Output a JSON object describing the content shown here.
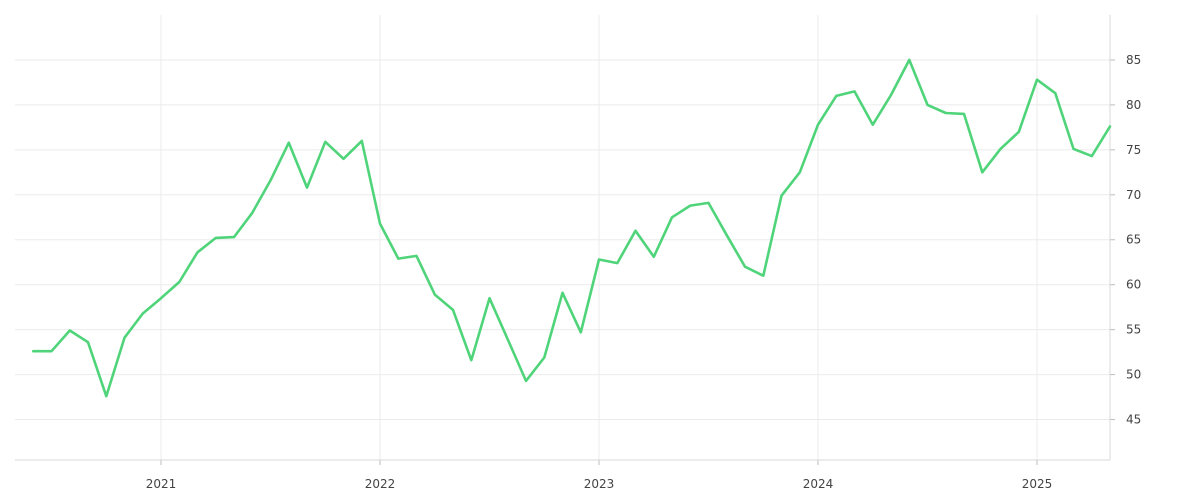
{
  "chart_data": {
    "type": "line",
    "title": "",
    "xlabel": "",
    "ylabel": "",
    "x_ticks": [
      "2021",
      "2022",
      "2023",
      "2024",
      "2025"
    ],
    "y_ticks": [
      45,
      50,
      55,
      60,
      65,
      70,
      75,
      80,
      85
    ],
    "ylim": [
      40.5,
      90
    ],
    "xlim": [
      "2020-05",
      "2025-05"
    ],
    "grid": true,
    "y_axis_side": "right",
    "line_color": "#4fd47a",
    "series": [
      {
        "x": [
          "2020-06",
          "2020-07",
          "2020-08",
          "2020-09",
          "2020-10",
          "2020-11",
          "2020-12",
          "2021-01",
          "2021-02",
          "2021-03",
          "2021-04",
          "2021-05",
          "2021-06",
          "2021-07",
          "2021-08",
          "2021-09",
          "2021-10",
          "2021-11",
          "2021-12",
          "2022-01",
          "2022-02",
          "2022-03",
          "2022-04",
          "2022-05",
          "2022-06",
          "2022-07",
          "2022-08",
          "2022-09",
          "2022-10",
          "2022-11",
          "2022-12",
          "2023-01",
          "2023-02",
          "2023-03",
          "2023-04",
          "2023-05",
          "2023-06",
          "2023-07",
          "2023-08",
          "2023-09",
          "2023-10",
          "2023-11",
          "2023-12",
          "2024-01",
          "2024-02",
          "2024-03",
          "2024-04",
          "2024-05",
          "2024-06",
          "2024-07",
          "2024-08",
          "2024-09",
          "2024-10",
          "2024-11",
          "2024-12",
          "2025-01",
          "2025-02",
          "2025-03",
          "2025-04",
          "2025-05"
        ],
        "values": [
          52.6,
          52.6,
          54.9,
          53.6,
          47.6,
          54.1,
          56.8,
          58.5,
          60.3,
          63.6,
          65.2,
          65.3,
          68.0,
          71.6,
          75.8,
          70.8,
          75.9,
          74.0,
          76.0,
          66.8,
          62.9,
          63.2,
          58.9,
          57.2,
          51.6,
          58.5,
          53.9,
          49.3,
          51.9,
          59.1,
          54.7,
          62.8,
          62.4,
          66.0,
          63.1,
          67.5,
          68.8,
          69.1,
          65.5,
          62.0,
          61.0,
          69.9,
          72.5,
          77.8,
          81.0,
          81.5,
          77.8,
          81.1,
          85.0,
          80.0,
          79.1,
          79.0,
          72.5,
          75.1,
          77.0,
          82.8,
          81.3,
          75.1,
          74.3,
          77.6
        ]
      }
    ]
  }
}
